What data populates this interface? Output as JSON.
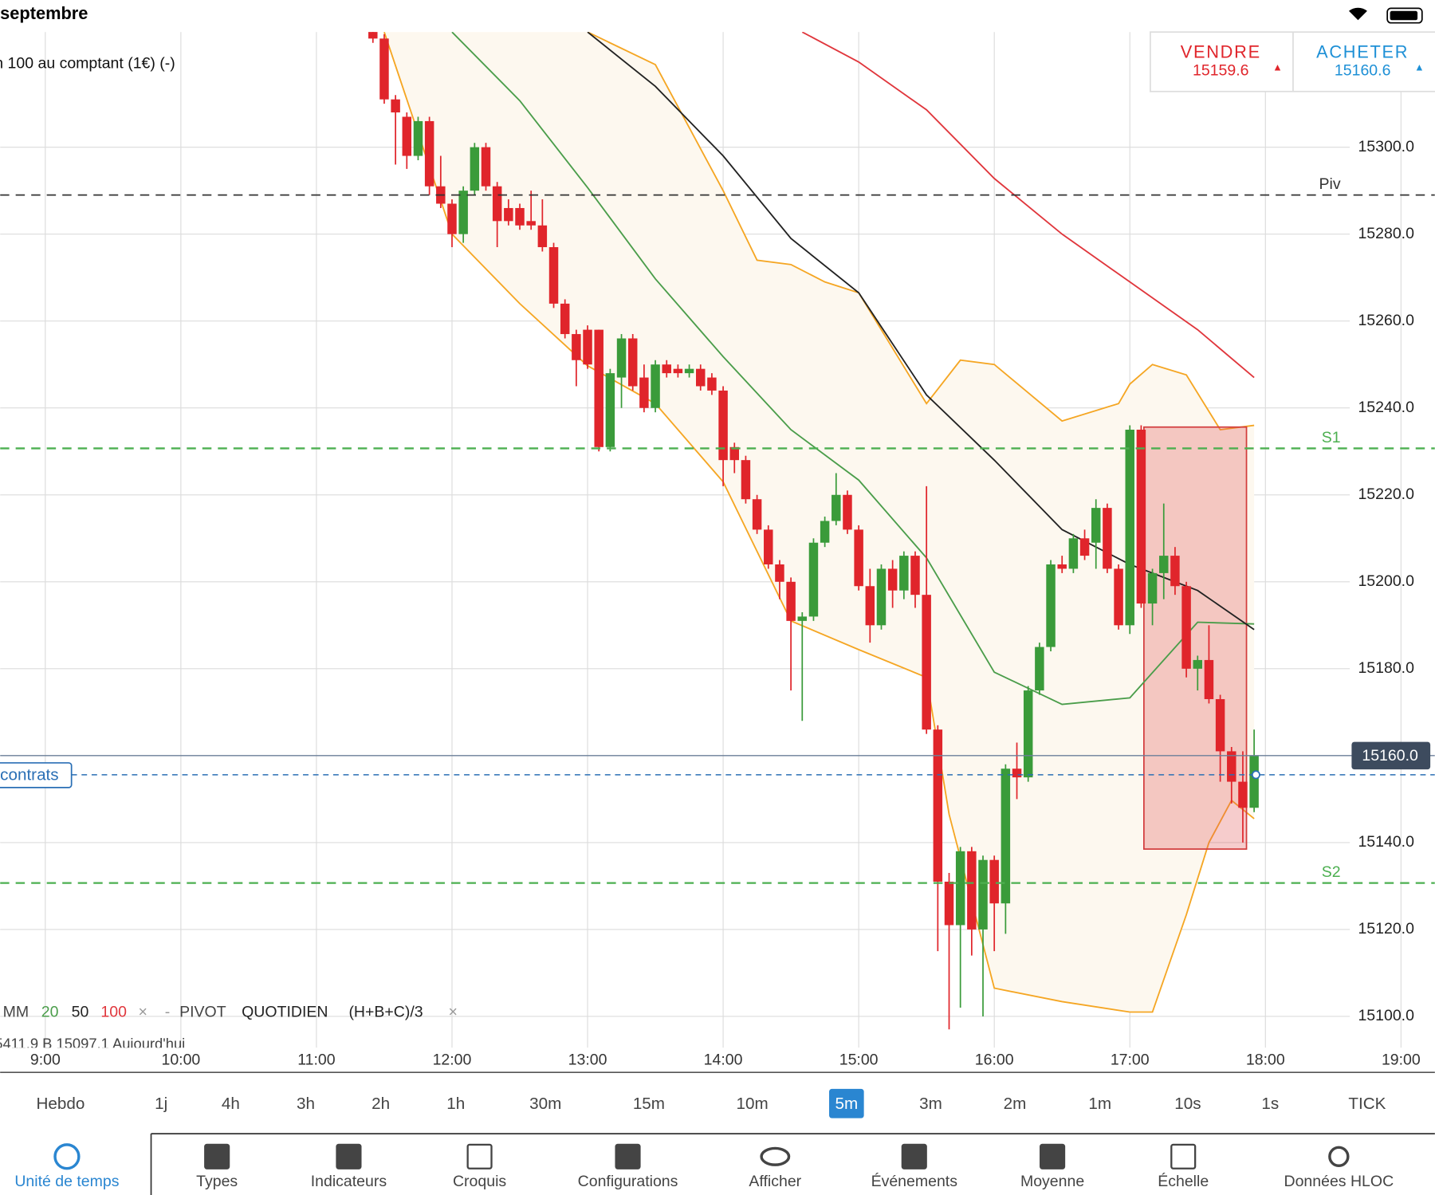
{
  "status_bar": {
    "date": "septembre"
  },
  "instrument": "n 100 au comptant (1€) (-)",
  "quote": {
    "sell": {
      "label": "VENDRE",
      "price": 15159.6,
      "arrow": "▲"
    },
    "buy": {
      "label": "ACHETER",
      "price": 15160.6,
      "arrow": "▲"
    }
  },
  "chart_data": {
    "type": "candlestick",
    "x": [
      "11:25",
      "11:30",
      "11:35",
      "11:40",
      "11:45",
      "11:50",
      "11:55",
      "12:00",
      "12:05",
      "12:10",
      "12:15",
      "12:20",
      "12:25",
      "12:30",
      "12:35",
      "12:40",
      "12:45",
      "12:50",
      "12:55",
      "13:00",
      "13:05",
      "13:10",
      "13:15",
      "13:20",
      "13:25",
      "13:30",
      "13:35",
      "13:40",
      "13:45",
      "13:50",
      "13:55",
      "14:00",
      "14:05",
      "14:10",
      "14:15",
      "14:20",
      "14:25",
      "14:30",
      "14:35",
      "14:40",
      "14:45",
      "14:50",
      "14:55",
      "15:00",
      "15:05",
      "15:10",
      "15:15",
      "15:20",
      "15:25",
      "15:30",
      "15:35",
      "15:40",
      "15:45",
      "15:50",
      "15:55",
      "16:00",
      "16:05",
      "16:10",
      "16:15",
      "16:20",
      "16:25",
      "16:30",
      "16:35",
      "16:40",
      "16:45",
      "16:50",
      "16:55",
      "17:00",
      "17:05",
      "17:10",
      "17:15",
      "17:20",
      "17:25",
      "17:30",
      "17:35",
      "17:40",
      "17:45",
      "17:50",
      "17:55"
    ],
    "open": [
      15327,
      15325,
      15311,
      15307,
      15298,
      15306,
      15291,
      15287,
      15280,
      15290,
      15300,
      15291,
      15286,
      15286,
      15283,
      15282,
      15277,
      15264,
      15257,
      15258,
      15258,
      15231,
      15247,
      15256,
      15247,
      15240,
      15250,
      15249,
      15248,
      15249,
      15247,
      15244,
      15231,
      15228,
      15219,
      15212,
      15204,
      15200,
      15191,
      15192,
      15209,
      15214,
      15220,
      15212,
      15199,
      15190,
      15203,
      15198,
      15206,
      15197,
      15166,
      15131,
      15121,
      15138,
      15120,
      15136,
      15126,
      15157,
      15155,
      15175,
      15185,
      15204,
      15203,
      15210,
      15209,
      15217,
      15203,
      15190,
      15235,
      15195,
      15202,
      15206,
      15199,
      15180,
      15182,
      15173,
      15161,
      15154,
      15148
    ],
    "high": [
      15327,
      15326,
      15312,
      15308,
      15307,
      15307,
      15298,
      15288,
      15291,
      15301,
      15301,
      15292,
      15288,
      15287,
      15290,
      15288,
      15278,
      15265,
      15258,
      15259,
      15258,
      15249,
      15257,
      15257,
      15250,
      15251,
      15251,
      15250,
      15250,
      15250,
      15248,
      15245,
      15232,
      15229,
      15220,
      15213,
      15205,
      15201,
      15193,
      15210,
      15215,
      15225,
      15221,
      15213,
      15203,
      15204,
      15205,
      15207,
      15207,
      15222,
      15167,
      15133,
      15139,
      15139,
      15137,
      15137,
      15158,
      15163,
      15176,
      15186,
      15205,
      15206,
      15211,
      15212,
      15219,
      15218,
      15204,
      15236,
      15236,
      15203,
      15218,
      15208,
      15200,
      15183,
      15190,
      15174,
      15162,
      15161,
      15166
    ],
    "low": [
      15324,
      15310,
      15296,
      15295,
      15297,
      15289,
      15286,
      15277,
      15278,
      15289,
      15290,
      15277,
      15282,
      15281,
      15281,
      15276,
      15263,
      15256,
      15245,
      15249,
      15230,
      15230,
      15240,
      15244,
      15239,
      15239,
      15247,
      15247,
      15247,
      15244,
      15243,
      15222,
      15225,
      15218,
      15211,
      15203,
      15196,
      15175,
      15168,
      15191,
      15208,
      15213,
      15211,
      15198,
      15186,
      15189,
      15194,
      15196,
      15194,
      15165,
      15115,
      15097,
      15102,
      15114,
      15100,
      15115,
      15119,
      15150,
      15154,
      15174,
      15184,
      15202,
      15202,
      15205,
      15203,
      15202,
      15189,
      15188,
      15194,
      15190,
      15196,
      15197,
      15178,
      15175,
      15172,
      15154,
      15149,
      15140,
      15147
    ],
    "close": [
      15325,
      15311,
      15308,
      15298,
      15306,
      15291,
      15287,
      15280,
      15290,
      15300,
      15291,
      15283,
      15283,
      15282,
      15282,
      15277,
      15264,
      15257,
      15251,
      15250,
      15231,
      15248,
      15256,
      15245,
      15240,
      15250,
      15248,
      15248,
      15249,
      15245,
      15244,
      15228,
      15228,
      15219,
      15212,
      15204,
      15200,
      15191,
      15192,
      15209,
      15214,
      15220,
      15212,
      15199,
      15190,
      15203,
      15198,
      15206,
      15197,
      15166,
      15131,
      15121,
      15138,
      15120,
      15136,
      15126,
      15157,
      15155,
      15175,
      15185,
      15204,
      15203,
      15210,
      15206,
      15217,
      15203,
      15190,
      15235,
      15195,
      15202,
      15206,
      15199,
      15180,
      15182,
      15173,
      15161,
      15154,
      15148,
      15160
    ],
    "up_color": "#3a9b3a",
    "down_color": "#e0252b",
    "xlim": [
      "8:40",
      "19:15"
    ],
    "xticks": [
      "9:00",
      "10:00",
      "11:00",
      "12:00",
      "13:00",
      "14:00",
      "15:00",
      "16:00",
      "17:00",
      "18:00",
      "19:00"
    ],
    "ylim": [
      15092.8,
      15326.5
    ],
    "yticks": [
      {
        "value": 15100,
        "label": "15100.0"
      },
      {
        "value": 15120,
        "label": "15120.0"
      },
      {
        "value": 15140,
        "label": "15140.0"
      },
      {
        "value": 15160,
        "label": "15160.0"
      },
      {
        "value": 15180,
        "label": "15180.0"
      },
      {
        "value": 15200,
        "label": "15200.0"
      },
      {
        "value": 15220,
        "label": "15220.0"
      },
      {
        "value": 15240,
        "label": "15240.0"
      },
      {
        "value": 15260,
        "label": "15260.0"
      },
      {
        "value": 15280,
        "label": "15280.0"
      },
      {
        "value": 15300,
        "label": "15300.0"
      }
    ],
    "grid": true,
    "lines": [
      {
        "name": "20",
        "color": "#4a9d4a",
        "x": [
          "12:00",
          "12:30",
          "13:00",
          "13:30",
          "14:00",
          "14:30",
          "15:00",
          "15:30",
          "16:00",
          "16:30",
          "17:00",
          "17:30",
          "17:55"
        ],
        "values": [
          15326.5,
          15310.7,
          15290.7,
          15269.7,
          15251.8,
          15235,
          15223.4,
          15205.5,
          15179.2,
          15171.8,
          15173.3,
          15190.7,
          15190.3
        ]
      },
      {
        "name": "50",
        "color": "#222222",
        "x": [
          "13:00",
          "13:30",
          "14:00",
          "14:30",
          "15:00",
          "15:30",
          "16:00",
          "16:30",
          "17:00",
          "17:30",
          "17:55"
        ],
        "values": [
          15326.5,
          15314,
          15298,
          15279,
          15266.5,
          15243,
          15228,
          15212,
          15204,
          15198,
          15189
        ]
      },
      {
        "name": "100",
        "color": "#e0363c",
        "x": [
          "14:35",
          "15:00",
          "15:30",
          "16:00",
          "16:30",
          "17:00",
          "17:30",
          "17:55"
        ],
        "values": [
          15326.5,
          15319.6,
          15308.6,
          15292.8,
          15280,
          15269,
          15258,
          15247
        ]
      }
    ],
    "bollinger": {
      "color": "#f5a623",
      "fill": "#fdf8ef",
      "upper": {
        "x": [
          "13:00",
          "13:30",
          "14:00",
          "14:15",
          "14:30",
          "14:45",
          "15:00",
          "15:30",
          "15:45",
          "16:00",
          "16:30",
          "16:55",
          "17:00",
          "17:10",
          "17:25",
          "17:40",
          "17:55"
        ],
        "values": [
          15326.5,
          15319,
          15290,
          15274,
          15273,
          15269,
          15266.5,
          15241,
          15251,
          15250,
          15237,
          15241,
          15245.5,
          15250,
          15247.6,
          15235,
          15236
        ]
      },
      "lower": {
        "x": [
          "11:30",
          "12:00",
          "12:30",
          "13:00",
          "13:30",
          "14:00",
          "14:30",
          "15:00",
          "15:30",
          "15:40",
          "16:00",
          "16:30",
          "17:00",
          "17:10",
          "17:25",
          "17:35",
          "17:45",
          "17:55"
        ],
        "values": [
          15326.5,
          15280,
          15264,
          15249.7,
          15241,
          15223,
          15191,
          15184.4,
          15178,
          15146.5,
          15106.5,
          15103.4,
          15101,
          15101,
          15123.4,
          15140,
          15149.7,
          15145.5
        ]
      }
    },
    "pivots": [
      {
        "name": "Piv",
        "value": 15289,
        "color": "#333333"
      },
      {
        "name": "S1",
        "value": 15230.7,
        "color": "#4caf50"
      },
      {
        "name": "S2",
        "value": 15130.7,
        "color": "#4caf50"
      }
    ],
    "last_price": {
      "value": 15160,
      "label": "15160.0"
    },
    "position": {
      "label": "contrats",
      "value": 15155.6
    },
    "zone": {
      "x": [
        "17:05",
        "17:50"
      ],
      "values": [
        15235.6,
        15138.5
      ],
      "color": "#e05555"
    },
    "legend": {
      "title": "MM",
      "pivot": "PIVOT",
      "pivot_period": "QUOTIDIEN",
      "pivot_formula": "(H+B+C)/3",
      "close": "×",
      "separator": "-"
    },
    "info_row": "5411.9    B 15097.1    Aujourd'hui"
  },
  "timeframes": {
    "items": [
      "Hebdo",
      "1j",
      "4h",
      "3h",
      "2h",
      "1h",
      "30m",
      "15m",
      "10m",
      "5m",
      "3m",
      "2m",
      "1m",
      "10s",
      "1s",
      "TICK"
    ],
    "selected": 9
  },
  "toolbar": {
    "items": [
      "Unité de temps",
      "Types",
      "Indicateurs",
      "Croquis",
      "Configurations",
      "Afficher",
      "Événements",
      "Moyenne",
      "Échelle",
      "Données HLOC"
    ],
    "selected": 0
  }
}
